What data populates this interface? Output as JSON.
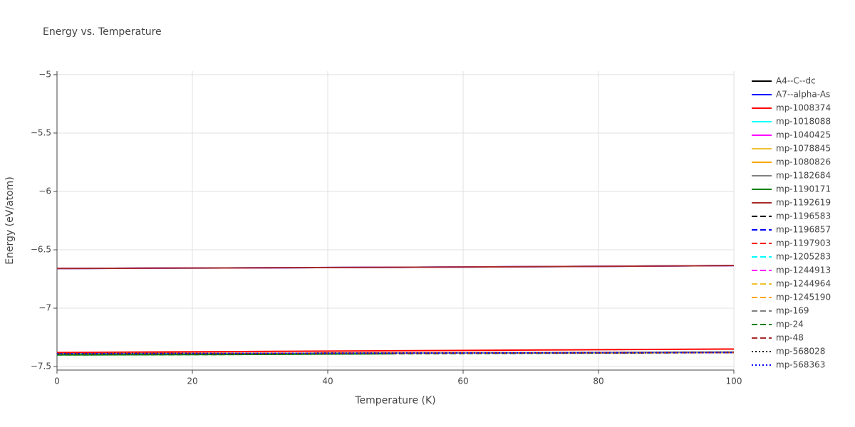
{
  "chart_data": {
    "type": "line",
    "title": "Energy vs. Temperature",
    "x_label": "Temperature (K)",
    "y_label": "Energy (eV/atom)",
    "x": [
      0,
      25,
      50,
      75,
      100
    ],
    "xlim": [
      0,
      100
    ],
    "xticks": [
      0,
      20,
      40,
      60,
      80,
      100
    ],
    "ylim": [
      -7.53,
      -4.97
    ],
    "yticks": [
      {
        "value": -7.5,
        "label": "−7.5"
      },
      {
        "value": -7,
        "label": "−7"
      },
      {
        "value": -6.5,
        "label": "−6.5"
      },
      {
        "value": -6,
        "label": "−6"
      },
      {
        "value": -5.5,
        "label": "−5.5"
      },
      {
        "value": -5,
        "label": "−5"
      }
    ],
    "grid": true,
    "series": [
      {
        "name": "A4--C--dc",
        "color": "#000000",
        "dash": "solid",
        "values": [
          -7.39,
          -7.388,
          -7.385,
          -7.382,
          -7.38
        ]
      },
      {
        "name": "A7--alpha-As",
        "color": "#0000ff",
        "dash": "solid",
        "values": [
          -6.66,
          -6.655,
          -6.65,
          -6.643,
          -6.635
        ]
      },
      {
        "name": "mp-1008374",
        "color": "#ff0000",
        "dash": "solid",
        "values": [
          -7.38,
          -7.372,
          -7.365,
          -7.357,
          -7.35
        ]
      },
      {
        "name": "mp-1018088",
        "color": "#00ffff",
        "dash": "solid",
        "values": [
          -6.66,
          -6.655,
          -6.65,
          -6.643,
          -6.635
        ]
      },
      {
        "name": "mp-1040425",
        "color": "#ff00ff",
        "dash": "solid",
        "values": [
          -6.66,
          -6.655,
          -6.65,
          -6.643,
          -6.635
        ]
      },
      {
        "name": "mp-1078845",
        "color": "#f0c030",
        "dash": "solid",
        "values": [
          -7.39,
          -7.388,
          -7.385,
          -7.382,
          -7.38
        ]
      },
      {
        "name": "mp-1080826",
        "color": "#ffa500",
        "dash": "solid",
        "values": [
          -7.39,
          -7.388,
          -7.385,
          -7.382,
          -7.38
        ]
      },
      {
        "name": "mp-1182684",
        "color": "#808080",
        "dash": "solid",
        "values": [
          -7.39,
          -7.388,
          -7.385,
          -7.38,
          -7.375
        ]
      },
      {
        "name": "mp-1190171",
        "color": "#008000",
        "dash": "solid",
        "values": [
          -7.4,
          -7.397,
          -7.39,
          null,
          null
        ]
      },
      {
        "name": "mp-1192619",
        "color": "#a52a2a",
        "dash": "solid",
        "values": [
          -6.66,
          -6.655,
          -6.65,
          -6.643,
          -6.635
        ]
      },
      {
        "name": "mp-1196583",
        "color": "#000000",
        "dash": "dash",
        "values": [
          -7.39,
          -7.388,
          -7.385,
          -7.382,
          -7.38
        ]
      },
      {
        "name": "mp-1196857",
        "color": "#0000ff",
        "dash": "dash",
        "values": [
          -7.39,
          -7.388,
          -7.385,
          -7.382,
          -7.38
        ]
      },
      {
        "name": "mp-1197903",
        "color": "#ff0000",
        "dash": "dash",
        "values": [
          -7.39,
          -7.388,
          -7.385,
          -7.382,
          -7.38
        ]
      },
      {
        "name": "mp-1205283",
        "color": "#00ffff",
        "dash": "dash",
        "values": [
          -7.39,
          -7.388,
          -7.385,
          -7.382,
          -7.38
        ]
      },
      {
        "name": "mp-1244913",
        "color": "#ff00ff",
        "dash": "dash",
        "values": [
          -7.39,
          -7.388,
          -7.385,
          -7.382,
          -7.38
        ]
      },
      {
        "name": "mp-1244964",
        "color": "#f0c030",
        "dash": "dash",
        "values": [
          -7.39,
          -7.388,
          -7.385,
          -7.382,
          -7.38
        ]
      },
      {
        "name": "mp-1245190",
        "color": "#ffa500",
        "dash": "dash",
        "values": [
          -7.39,
          -7.388,
          -7.385,
          -7.382,
          -7.38
        ]
      },
      {
        "name": "mp-169",
        "color": "#808080",
        "dash": "dash",
        "values": [
          -7.39,
          -7.388,
          -7.385,
          -7.38,
          -7.375
        ]
      },
      {
        "name": "mp-24",
        "color": "#008000",
        "dash": "dash",
        "values": [
          -7.4,
          -7.397,
          -7.39,
          -7.385,
          -7.38
        ]
      },
      {
        "name": "mp-48",
        "color": "#a52a2a",
        "dash": "dash",
        "values": [
          -7.39,
          -7.388,
          -7.385,
          -7.382,
          -7.38
        ]
      },
      {
        "name": "mp-568028",
        "color": "#000000",
        "dash": "dot",
        "values": [
          -7.39,
          -7.388,
          -7.385,
          -7.382,
          -7.38
        ]
      },
      {
        "name": "mp-568363",
        "color": "#0000ff",
        "dash": "dot",
        "values": [
          -7.39,
          -7.388,
          -7.385,
          -7.382,
          -7.38
        ]
      }
    ]
  }
}
